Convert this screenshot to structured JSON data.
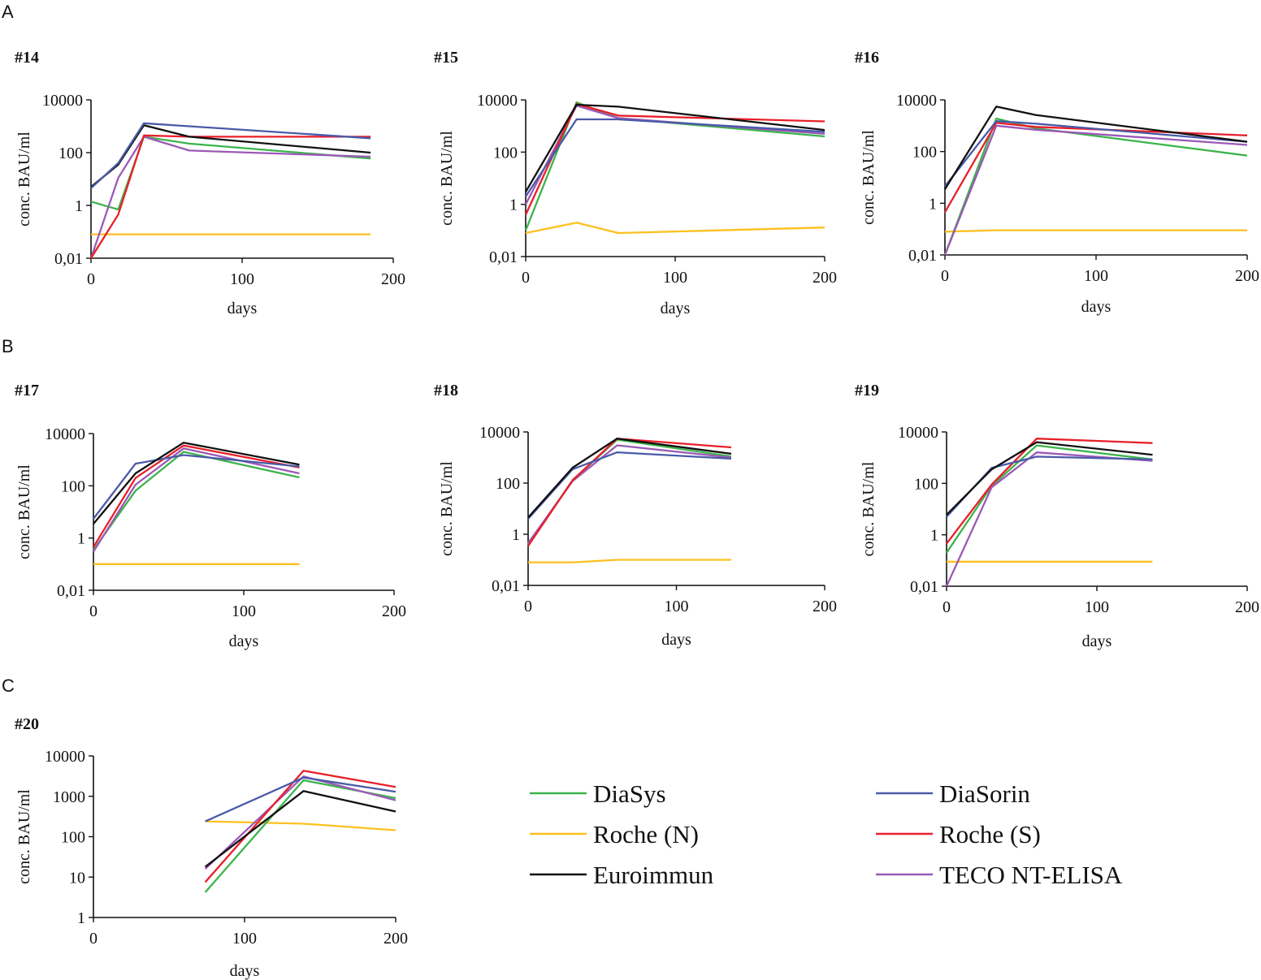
{
  "figure_title": "Antibody concentration time courses",
  "panel_letters": {
    "A": "A",
    "B": "B",
    "C": "C"
  },
  "legend": [
    {
      "name": "DiaSys",
      "color": "#3cb44b"
    },
    {
      "name": "DiaSorin",
      "color": "#4a5aa8"
    },
    {
      "name": "Roche (N)",
      "color": "#fdc020"
    },
    {
      "name": "Roche (S)",
      "color": "#e8202a"
    },
    {
      "name": "Euroimmun",
      "color": "#111111"
    },
    {
      "name": "TECO NT-ELISA",
      "color": "#9b59b6"
    }
  ],
  "chart_data": [
    {
      "type": "line",
      "panel": "A",
      "title": "#14",
      "xlabel": "days",
      "ylabel": "conc. BAU/ml",
      "xlim": [
        0,
        200
      ],
      "xticks": [
        "0",
        "100",
        "200"
      ],
      "ylim": [
        0.01,
        10000
      ],
      "ylog": true,
      "yticks": [
        {
          "v": 0.01,
          "label": "0,01"
        },
        {
          "v": 1,
          "label": "1"
        },
        {
          "v": 100,
          "label": "100"
        },
        {
          "v": 10000,
          "label": "10000"
        }
      ],
      "series": [
        {
          "name": "Roche (N)",
          "x": [
            0,
            185
          ],
          "y": [
            0.08,
            0.08
          ]
        },
        {
          "name": "DiaSys",
          "x": [
            0,
            18,
            35,
            65,
            185
          ],
          "y": [
            1.4,
            0.7,
            400,
            220,
            60
          ]
        },
        {
          "name": "TECO NT-ELISA",
          "x": [
            0,
            18,
            35,
            65,
            185
          ],
          "y": [
            0.01,
            11,
            400,
            120,
            70
          ]
        },
        {
          "name": "Roche (S)",
          "x": [
            0,
            18,
            35,
            65,
            185
          ],
          "y": [
            0.01,
            0.45,
            450,
            400,
            400
          ]
        },
        {
          "name": "Euroimmun",
          "x": [
            0,
            18,
            35,
            65,
            185
          ],
          "y": [
            5,
            35,
            1100,
            400,
            100
          ]
        },
        {
          "name": "DiaSorin",
          "x": [
            0,
            18,
            35,
            65,
            185
          ],
          "y": [
            4.5,
            40,
            1300,
            1000,
            350
          ]
        }
      ]
    },
    {
      "type": "line",
      "panel": "A",
      "title": "#15",
      "xlabel": "days",
      "ylabel": "conc. BAU/ml",
      "xlim": [
        0,
        200
      ],
      "xticks": [
        "0",
        "100",
        "200"
      ],
      "ylim": [
        0.01,
        10000
      ],
      "ylog": true,
      "yticks": [
        {
          "v": 0.01,
          "label": "0,01"
        },
        {
          "v": 1,
          "label": "1"
        },
        {
          "v": 100,
          "label": "100"
        },
        {
          "v": 10000,
          "label": "10000"
        }
      ],
      "series": [
        {
          "name": "Roche (N)",
          "x": [
            0,
            34,
            62,
            200
          ],
          "y": [
            0.08,
            0.2,
            0.08,
            0.13
          ]
        },
        {
          "name": "DiaSys",
          "x": [
            0,
            34,
            62,
            200
          ],
          "y": [
            0.1,
            8000,
            2000,
            400
          ]
        },
        {
          "name": "TECO NT-ELISA",
          "x": [
            0,
            34,
            62,
            200
          ],
          "y": [
            1,
            6000,
            2000,
            500
          ]
        },
        {
          "name": "Roche (S)",
          "x": [
            0,
            34,
            62,
            200
          ],
          "y": [
            0.4,
            7000,
            2500,
            1500
          ]
        },
        {
          "name": "DiaSorin",
          "x": [
            0,
            34,
            62,
            200
          ],
          "y": [
            2,
            1800,
            1800,
            600
          ]
        },
        {
          "name": "Euroimmun",
          "x": [
            0,
            34,
            62,
            200
          ],
          "y": [
            3,
            6500,
            5500,
            700
          ]
        }
      ]
    },
    {
      "type": "line",
      "panel": "A",
      "title": "#16",
      "xlabel": "days",
      "ylabel": "conc. BAU/ml",
      "xlim": [
        0,
        200
      ],
      "xticks": [
        "0",
        "100",
        "200"
      ],
      "ylim": [
        0.01,
        10000
      ],
      "ylog": true,
      "yticks": [
        {
          "v": 0.01,
          "label": "0,01"
        },
        {
          "v": 1,
          "label": "1"
        },
        {
          "v": 100,
          "label": "100"
        },
        {
          "v": 10000,
          "label": "10000"
        }
      ],
      "series": [
        {
          "name": "Roche (N)",
          "x": [
            0,
            34,
            200
          ],
          "y": [
            0.08,
            0.09,
            0.09
          ]
        },
        {
          "name": "DiaSys",
          "x": [
            0,
            34,
            60,
            200
          ],
          "y": [
            0.01,
            1900,
            800,
            70
          ]
        },
        {
          "name": "TECO NT-ELISA",
          "x": [
            0,
            34,
            60,
            200
          ],
          "y": [
            0.01,
            1000,
            700,
            180
          ]
        },
        {
          "name": "Roche (S)",
          "x": [
            0,
            34,
            60,
            200
          ],
          "y": [
            0.45,
            1300,
            900,
            420
          ]
        },
        {
          "name": "DiaSorin",
          "x": [
            0,
            34,
            60,
            200
          ],
          "y": [
            4.5,
            1500,
            1200,
            240
          ]
        },
        {
          "name": "Euroimmun",
          "x": [
            0,
            34,
            60,
            200
          ],
          "y": [
            3.5,
            5500,
            2600,
            240
          ]
        }
      ]
    },
    {
      "type": "line",
      "panel": "B",
      "title": "#17",
      "xlabel": "days",
      "ylabel": "conc. BAU/ml",
      "xlim": [
        0,
        200
      ],
      "xticks": [
        "0",
        "100",
        "200"
      ],
      "ylim": [
        0.01,
        10000
      ],
      "ylog": true,
      "yticks": [
        {
          "v": 0.01,
          "label": "0,01"
        },
        {
          "v": 1,
          "label": "1"
        },
        {
          "v": 100,
          "label": "100"
        },
        {
          "v": 10000,
          "label": "10000"
        }
      ],
      "series": [
        {
          "name": "Roche (N)",
          "x": [
            0,
            137
          ],
          "y": [
            0.1,
            0.1
          ]
        },
        {
          "name": "DiaSys",
          "x": [
            0,
            28,
            60,
            137
          ],
          "y": [
            0.35,
            65,
            2000,
            210
          ]
        },
        {
          "name": "TECO NT-ELISA",
          "x": [
            0,
            28,
            60,
            137
          ],
          "y": [
            0.3,
            110,
            2700,
            300
          ]
        },
        {
          "name": "Roche (S)",
          "x": [
            0,
            28,
            60,
            137
          ],
          "y": [
            0.45,
            200,
            3500,
            500
          ]
        },
        {
          "name": "DiaSorin",
          "x": [
            0,
            28,
            60,
            137
          ],
          "y": [
            5.5,
            700,
            1500,
            550
          ]
        },
        {
          "name": "Euroimmun",
          "x": [
            0,
            28,
            60,
            137
          ],
          "y": [
            3.5,
            300,
            4500,
            650
          ]
        }
      ]
    },
    {
      "type": "line",
      "panel": "B",
      "title": "#18",
      "xlabel": "days",
      "ylabel": "conc. BAU/ml",
      "xlim": [
        0,
        200
      ],
      "xticks": [
        "0",
        "100",
        "200"
      ],
      "ylim": [
        0.01,
        10000
      ],
      "ylog": true,
      "yticks": [
        {
          "v": 0.01,
          "label": "0,01"
        },
        {
          "v": 1,
          "label": "1"
        },
        {
          "v": 100,
          "label": "100"
        },
        {
          "v": 10000,
          "label": "10000"
        }
      ],
      "series": [
        {
          "name": "Roche (N)",
          "x": [
            0,
            30,
            60,
            137
          ],
          "y": [
            0.08,
            0.08,
            0.1,
            0.1
          ]
        },
        {
          "name": "DiaSys",
          "x": [
            0,
            30,
            60,
            137
          ],
          "y": [
            0.4,
            130,
            5000,
            1100
          ]
        },
        {
          "name": "TECO NT-ELISA",
          "x": [
            0,
            30,
            60,
            137
          ],
          "y": [
            0.45,
            120,
            3000,
            1000
          ]
        },
        {
          "name": "Roche (S)",
          "x": [
            0,
            30,
            60,
            137
          ],
          "y": [
            0.35,
            130,
            5500,
            2500
          ]
        },
        {
          "name": "DiaSorin",
          "x": [
            0,
            30,
            60,
            137
          ],
          "y": [
            4,
            350,
            1600,
            900
          ]
        },
        {
          "name": "Euroimmun",
          "x": [
            0,
            30,
            60,
            137
          ],
          "y": [
            4.5,
            400,
            5500,
            1400
          ]
        }
      ]
    },
    {
      "type": "line",
      "panel": "B",
      "title": "#19",
      "xlabel": "days",
      "ylabel": "conc. BAU/ml",
      "xlim": [
        0,
        200
      ],
      "xticks": [
        "0",
        "100",
        "200"
      ],
      "ylim": [
        0.01,
        10000
      ],
      "ylog": true,
      "yticks": [
        {
          "v": 0.01,
          "label": "0,01"
        },
        {
          "v": 1,
          "label": "1"
        },
        {
          "v": 100,
          "label": "100"
        },
        {
          "v": 10000,
          "label": "10000"
        }
      ],
      "series": [
        {
          "name": "Roche (N)",
          "x": [
            0,
            137
          ],
          "y": [
            0.09,
            0.09
          ]
        },
        {
          "name": "DiaSys",
          "x": [
            0,
            30,
            60,
            137
          ],
          "y": [
            0.2,
            80,
            3000,
            850
          ]
        },
        {
          "name": "TECO NT-ELISA",
          "x": [
            0,
            30,
            60,
            137
          ],
          "y": [
            0.01,
            70,
            1600,
            750
          ]
        },
        {
          "name": "Roche (S)",
          "x": [
            0,
            30,
            60,
            137
          ],
          "y": [
            0.45,
            90,
            5500,
            3700
          ]
        },
        {
          "name": "DiaSorin",
          "x": [
            0,
            30,
            60,
            137
          ],
          "y": [
            5,
            400,
            1100,
            850
          ]
        },
        {
          "name": "Euroimmun",
          "x": [
            0,
            30,
            60,
            137
          ],
          "y": [
            6,
            350,
            4000,
            1300
          ]
        }
      ]
    },
    {
      "type": "line",
      "panel": "C",
      "title": "#20",
      "xlabel": "days",
      "ylabel": "conc. BAU/ml",
      "xlim": [
        0,
        200
      ],
      "xticks": [
        "0",
        "100",
        "200"
      ],
      "ylim": [
        1,
        10000
      ],
      "ylog": true,
      "yticks": [
        {
          "v": 1,
          "label": "1"
        },
        {
          "v": 10,
          "label": "10"
        },
        {
          "v": 100,
          "label": "100"
        },
        {
          "v": 1000,
          "label": "1000"
        },
        {
          "v": 10000,
          "label": "10000"
        }
      ],
      "series": [
        {
          "name": "Roche (N)",
          "x": [
            74,
            139,
            200
          ],
          "y": [
            240,
            210,
            145
          ]
        },
        {
          "name": "DiaSys",
          "x": [
            74,
            139,
            200
          ],
          "y": [
            4.2,
            2500,
            900
          ]
        },
        {
          "name": "TECO NT-ELISA",
          "x": [
            74,
            139,
            200
          ],
          "y": [
            16,
            3100,
            800
          ]
        },
        {
          "name": "Roche (S)",
          "x": [
            74,
            139,
            200
          ],
          "y": [
            7.5,
            4300,
            1700
          ]
        },
        {
          "name": "DiaSorin",
          "x": [
            74,
            139,
            200
          ],
          "y": [
            240,
            2900,
            1300
          ]
        },
        {
          "name": "Euroimmun",
          "x": [
            74,
            139,
            200
          ],
          "y": [
            18,
            1350,
            420
          ]
        }
      ]
    }
  ]
}
